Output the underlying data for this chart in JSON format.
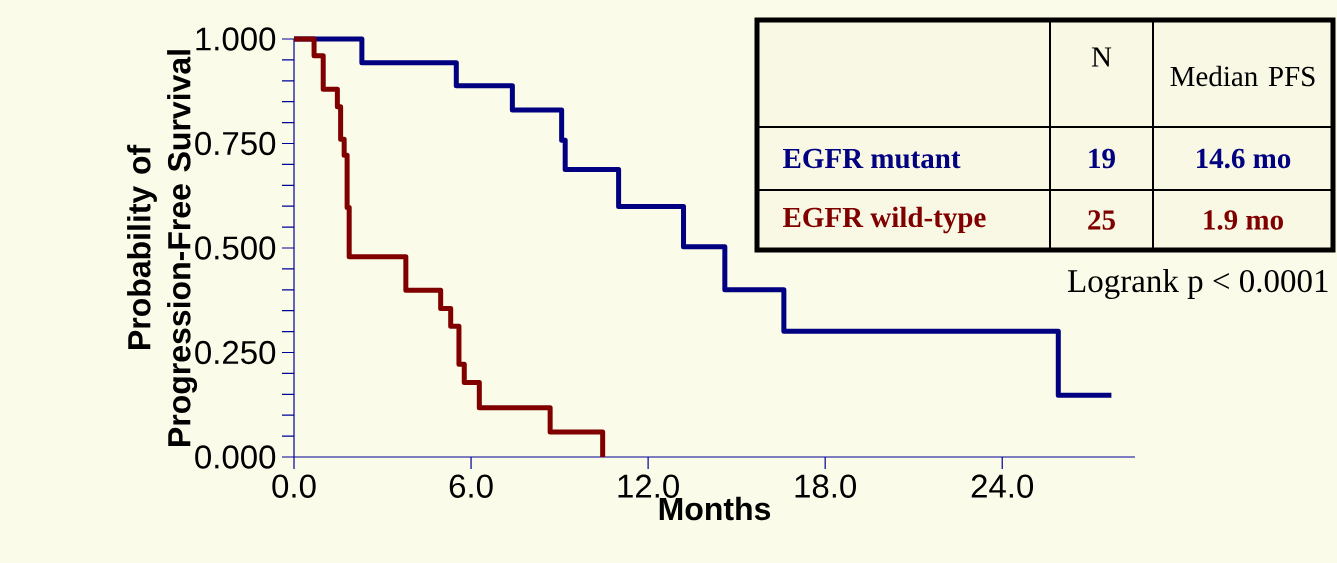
{
  "chart_data": {
    "type": "step",
    "xlabel": "Months",
    "ylabel": "Probability of Progression-Free Survival",
    "series": [
      {
        "name": "EGFR mutant",
        "color": "#000080",
        "x": [
          0,
          2.3,
          5.5,
          7.4,
          9.07,
          9.19,
          11.0,
          13.2,
          14.6,
          16.6,
          25.9,
          27.7
        ],
        "values": [
          1.0,
          0.943,
          0.888,
          0.83,
          0.758,
          0.688,
          0.599,
          0.503,
          0.4,
          0.301,
          0.148,
          0.148
        ]
      },
      {
        "name": "EGFR wild-type",
        "color": "#800000",
        "x": [
          0,
          0.68,
          0.99,
          1.47,
          1.58,
          1.7,
          1.8,
          1.87,
          3.79,
          4.97,
          5.31,
          5.59,
          5.77,
          6.28,
          8.68,
          10.46
        ],
        "values": [
          1.0,
          0.96,
          0.88,
          0.838,
          0.76,
          0.722,
          0.597,
          0.479,
          0.399,
          0.355,
          0.313,
          0.222,
          0.178,
          0.118,
          0.06,
          0
        ]
      }
    ],
    "xlim": [
      0,
      28.5
    ],
    "ylim": [
      0,
      1.0
    ],
    "xticks": [
      {
        "value": 0,
        "label": "0.0"
      },
      {
        "value": 6,
        "label": "6.0"
      },
      {
        "value": 12,
        "label": "12.0"
      },
      {
        "value": 18,
        "label": "18.0"
      },
      {
        "value": 24,
        "label": "24.0"
      }
    ],
    "yticks": [
      {
        "value": 0,
        "label": "0.000"
      },
      {
        "value": 0.05,
        "label": null
      },
      {
        "value": 0.1,
        "label": null
      },
      {
        "value": 0.15,
        "label": null
      },
      {
        "value": 0.2,
        "label": null
      },
      {
        "value": 0.25,
        "label": "0.250"
      },
      {
        "value": 0.3,
        "label": null
      },
      {
        "value": 0.35,
        "label": null
      },
      {
        "value": 0.4,
        "label": null
      },
      {
        "value": 0.45,
        "label": null
      },
      {
        "value": 0.5,
        "label": "0.500"
      },
      {
        "value": 0.55,
        "label": null
      },
      {
        "value": 0.6,
        "label": null
      },
      {
        "value": 0.65,
        "label": null
      },
      {
        "value": 0.7,
        "label": null
      },
      {
        "value": 0.75,
        "label": "0.750"
      },
      {
        "value": 0.8,
        "label": null
      },
      {
        "value": 0.85,
        "label": null
      },
      {
        "value": 0.9,
        "label": null
      },
      {
        "value": 0.95,
        "label": null
      },
      {
        "value": 1.0,
        "label": "1.000"
      }
    ],
    "annotations": [
      "N",
      "Median PFS",
      "19",
      "14.6 mo",
      "25",
      "1.9 mo",
      "Logrank p < 0.0001"
    ],
    "grid": false,
    "legend": "top right"
  }
}
